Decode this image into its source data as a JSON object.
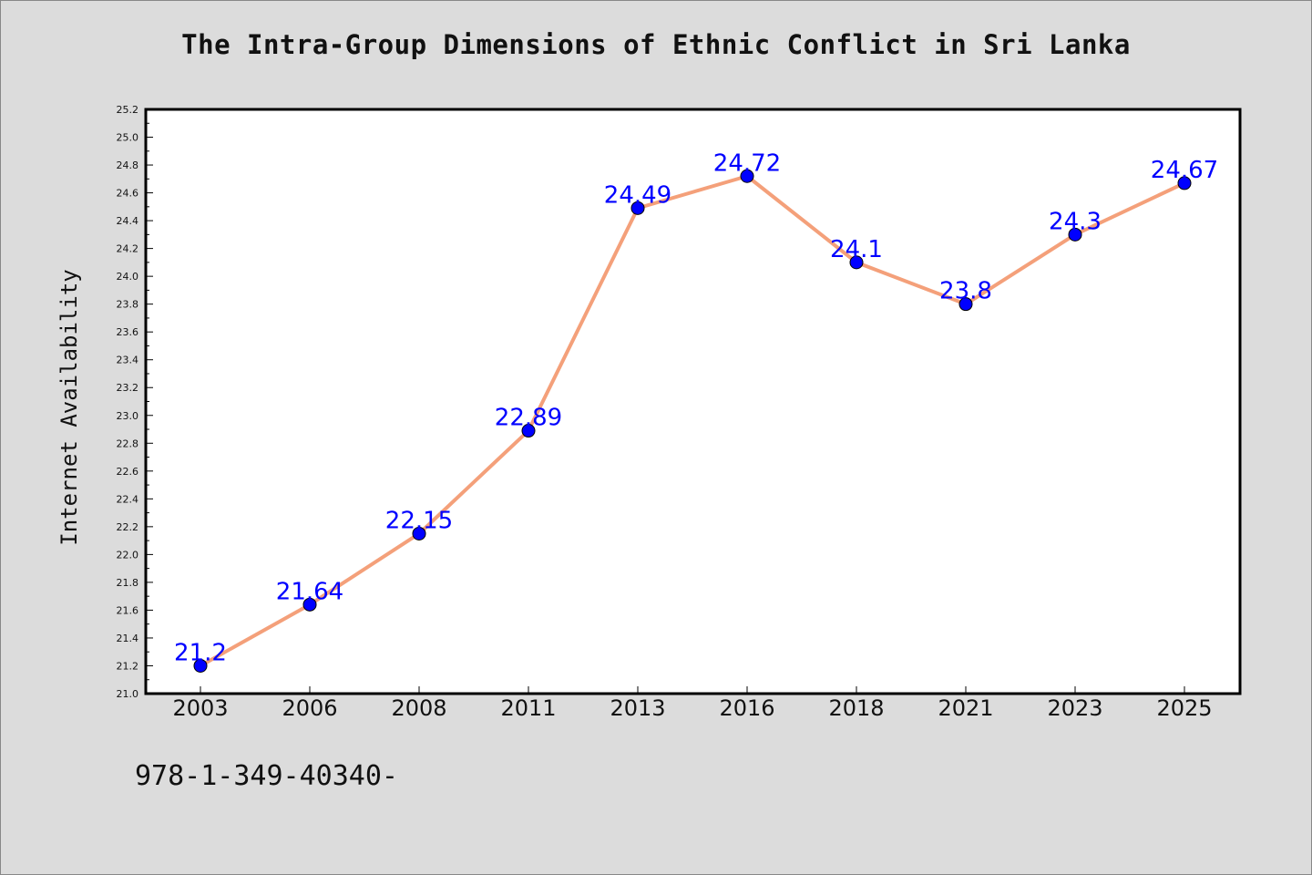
{
  "chart_data": {
    "type": "line",
    "title": "The Intra-Group Dimensions of Ethnic Conflict in Sri Lanka",
    "xlabel": "",
    "ylabel": "Internet Availability",
    "categories": [
      "2003",
      "2006",
      "2008",
      "2011",
      "2013",
      "2016",
      "2018",
      "2021",
      "2023",
      "2025"
    ],
    "series": [
      {
        "values": [
          21.2,
          21.64,
          22.15,
          22.89,
          24.49,
          24.72,
          24.1,
          23.8,
          24.3,
          24.67
        ],
        "labels": [
          "21.2",
          "21.64",
          "22.15",
          "22.89",
          "24.49",
          "24.72",
          "24.1",
          "23.8",
          "24.3",
          "24.67"
        ]
      }
    ],
    "ylim": [
      21.0,
      25.2
    ],
    "yticks": [
      "21.0",
      "21.2",
      "21.4",
      "21.6",
      "21.8",
      "22.0",
      "22.2",
      "22.4",
      "22.6",
      "22.8",
      "23.0",
      "23.2",
      "23.4",
      "23.6",
      "23.8",
      "24.0",
      "24.2",
      "24.4",
      "24.6",
      "24.8",
      "25.0",
      "25.2"
    ],
    "grid": false,
    "line_color": "#f4a07a",
    "marker_color": "#0000ff",
    "label_color": "#0000ff"
  },
  "footer": {
    "code": "978-1-349-40340-"
  }
}
